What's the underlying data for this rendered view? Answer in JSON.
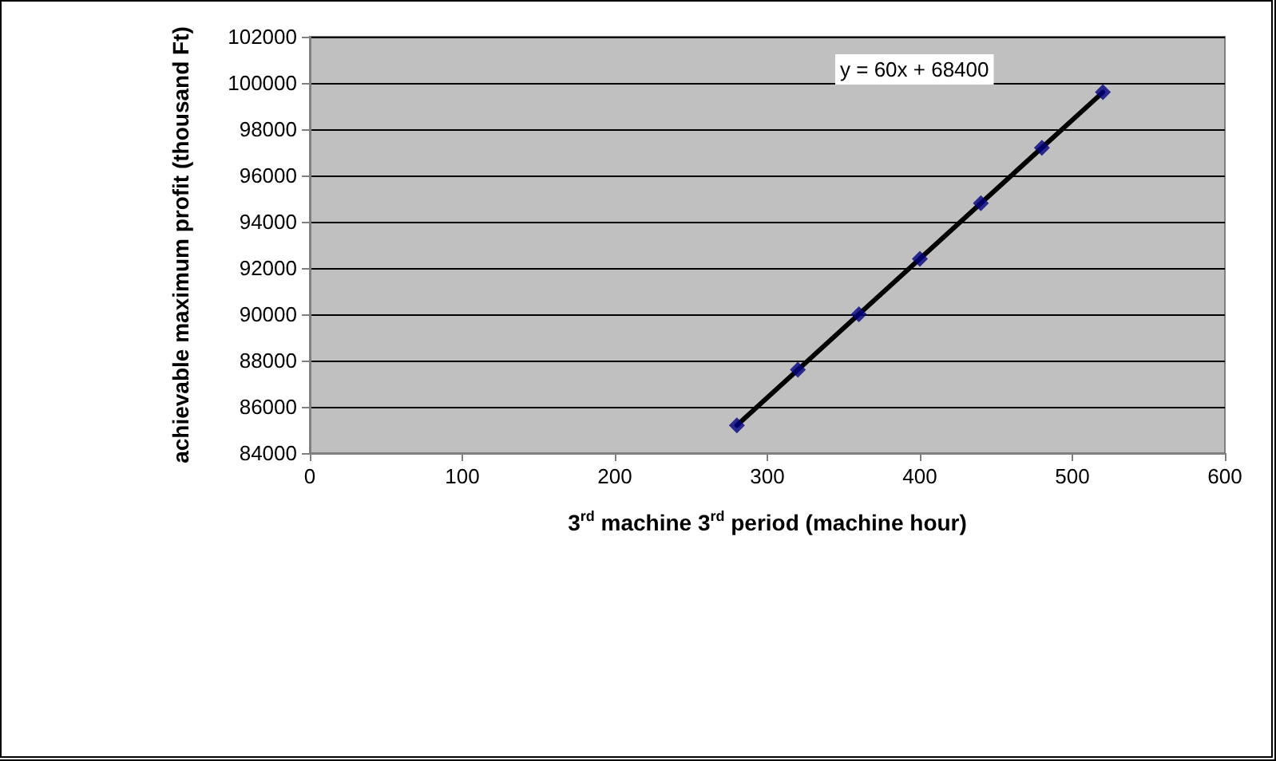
{
  "chart_data": {
    "type": "scatter",
    "xlabel": "3$^{rd}$ machine 3$^{rd}$ period (machine hour)",
    "ylabel": "achievable maximum profit (thousand Ft)",
    "annotations": [
      "y = 60x + 68400"
    ],
    "x": [
      280,
      320,
      360,
      400,
      440,
      480,
      520
    ],
    "series": [
      {
        "color": "#000080",
        "marker": "diamond",
        "values": [
          85200,
          87600,
          90000,
          92400,
          94800,
          97200,
          99600
        ]
      },
      {
        "type": "line",
        "color": "#000000",
        "marker": "none",
        "line_style": "solid",
        "x": [
          280,
          520
        ],
        "values": [
          85200,
          99600
        ]
      }
    ],
    "xlim": [
      0,
      600
    ],
    "xticks": [
      0,
      100,
      200,
      300,
      400,
      500,
      600
    ],
    "ylim": [
      84000,
      102000
    ],
    "yticks": [
      84000,
      86000,
      88000,
      90000,
      92000,
      94000,
      96000,
      98000,
      100000,
      102000
    ],
    "grid": "y"
  }
}
